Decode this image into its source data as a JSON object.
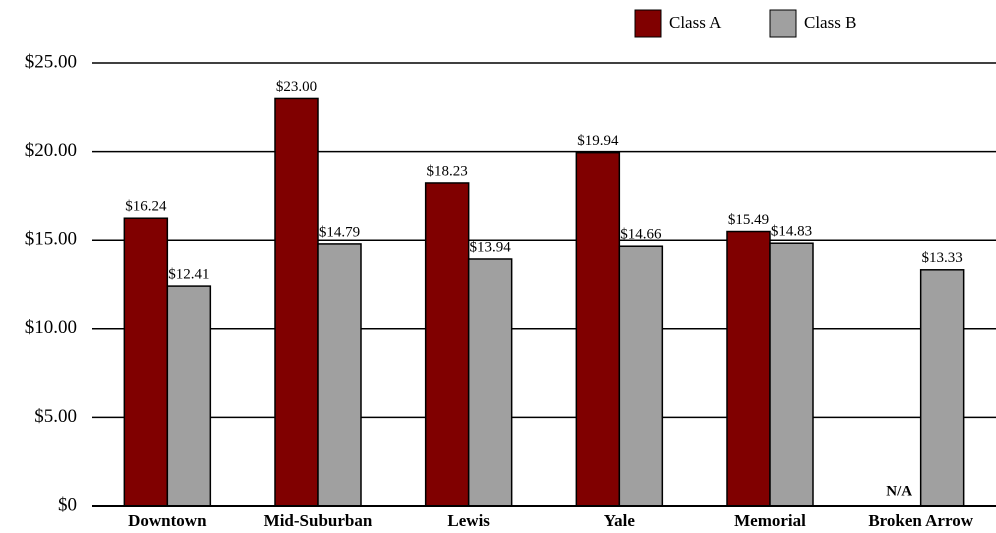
{
  "chart_data": {
    "type": "bar",
    "categories": [
      "Downtown",
      "Mid-Suburban",
      "Lewis",
      "Yale",
      "Memorial",
      "Broken Arrow"
    ],
    "series": [
      {
        "name": "Class A",
        "color": "#800000",
        "values": [
          16.24,
          23.0,
          18.23,
          19.94,
          15.49,
          null
        ],
        "value_labels": [
          "$16.24",
          "$23.00",
          "$18.23",
          "$19.94",
          "$15.49",
          "N/A"
        ]
      },
      {
        "name": "Class B",
        "color": "#a0a0a0",
        "values": [
          12.41,
          14.79,
          13.94,
          14.66,
          14.83,
          13.33
        ],
        "value_labels": [
          "$12.41",
          "$14.79",
          "$13.94",
          "$14.66",
          "$14.83",
          "$13.33"
        ]
      }
    ],
    "ylim": [
      0,
      25
    ],
    "yticks": [
      {
        "value": 0,
        "label": "$0"
      },
      {
        "value": 5,
        "label": "$5.00"
      },
      {
        "value": 10,
        "label": "$10.00"
      },
      {
        "value": 15,
        "label": "$15.00"
      },
      {
        "value": 20,
        "label": "$20.00"
      },
      {
        "value": 25,
        "label": "$25.00"
      }
    ],
    "grid": true,
    "legend": "top-right"
  }
}
